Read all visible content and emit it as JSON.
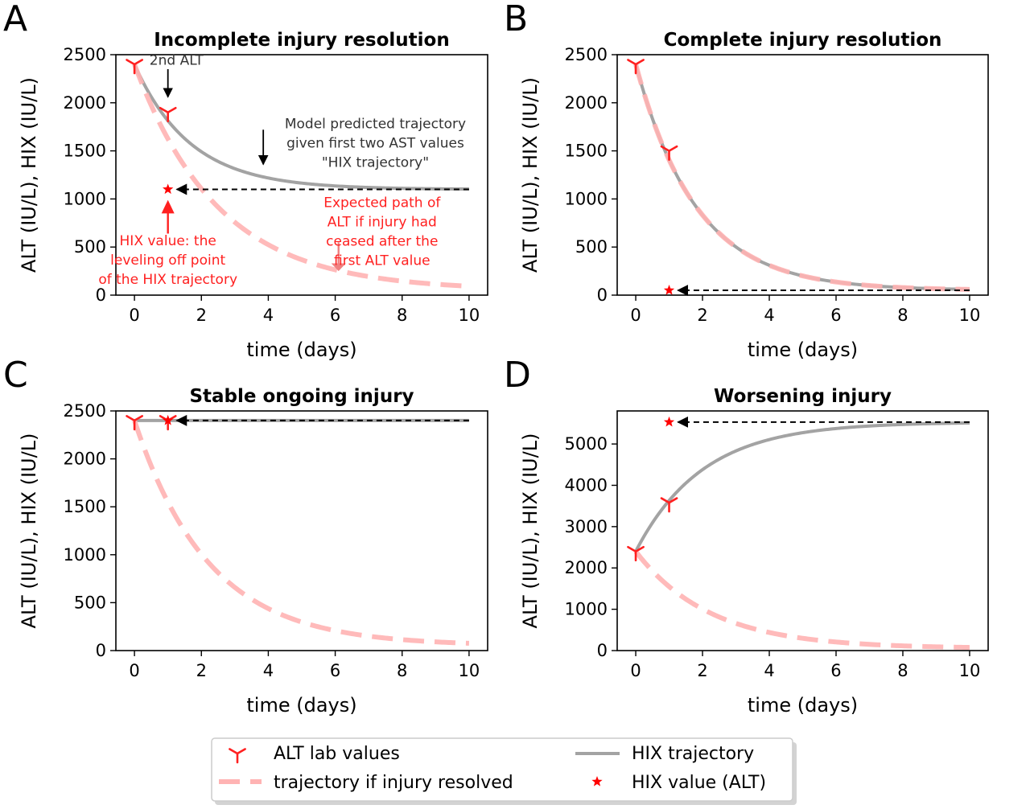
{
  "chart_data": [
    {
      "panel": "A",
      "type": "line",
      "title": "Incomplete injury resolution",
      "xlabel": "time (days)",
      "ylabel": "ALT (IU/L), HIX (IU/L)",
      "xlim": [
        0,
        10
      ],
      "ylim": [
        0,
        2500
      ],
      "xticks": [
        0,
        2,
        4,
        6,
        8,
        10
      ],
      "yticks": [
        0,
        500,
        1000,
        1500,
        2000,
        2500
      ],
      "hix_trajectory": {
        "start": 2400,
        "plateau": 1100,
        "rate": 0.6
      },
      "resolved_trajectory": {
        "start": 2400,
        "plateau": 50,
        "rate": 0.4
      },
      "alt_lab_values": [
        {
          "x": 0,
          "y": 2400
        },
        {
          "x": 1,
          "y": 1900
        }
      ],
      "hix_value": {
        "x": 1,
        "y": 1100
      },
      "annotations": [
        {
          "lines": [
            "2nd ALT"
          ],
          "color": "#333333"
        },
        {
          "lines": [
            "Model predicted trajectory",
            "given first two AST values",
            "\"HIX trajectory\""
          ],
          "color": "#333333"
        },
        {
          "lines": [
            "Expected path of",
            "ALT if injury had",
            "ceased after the",
            "first ALT value"
          ],
          "color": "#ff2020"
        },
        {
          "lines": [
            "HIX value: the",
            "leveling off point",
            "of the HIX trajectory"
          ],
          "color": "#ff2020"
        }
      ]
    },
    {
      "panel": "B",
      "type": "line",
      "title": "Complete injury resolution",
      "xlabel": "time (days)",
      "ylabel": "ALT (IU/L), HIX (IU/L)",
      "xlim": [
        0,
        10
      ],
      "ylim": [
        0,
        2500
      ],
      "xticks": [
        0,
        2,
        4,
        6,
        8,
        10
      ],
      "yticks": [
        0,
        500,
        1000,
        1500,
        2000,
        2500
      ],
      "hix_trajectory": {
        "start": 2400,
        "plateau": 50,
        "rate": 0.55
      },
      "resolved_trajectory": {
        "start": 2400,
        "plateau": 50,
        "rate": 0.55
      },
      "alt_lab_values": [
        {
          "x": 0,
          "y": 2400
        },
        {
          "x": 1,
          "y": 1500
        }
      ],
      "hix_value": {
        "x": 1,
        "y": 50
      },
      "annotations": []
    },
    {
      "panel": "C",
      "type": "line",
      "title": "Stable ongoing injury",
      "xlabel": "time (days)",
      "ylabel": "ALT (IU/L), HIX (IU/L)",
      "xlim": [
        0,
        10
      ],
      "ylim": [
        0,
        2500
      ],
      "xticks": [
        0,
        2,
        4,
        6,
        8,
        10
      ],
      "yticks": [
        0,
        500,
        1000,
        1500,
        2000,
        2500
      ],
      "hix_trajectory": {
        "start": 2400,
        "plateau": 2400,
        "rate": 0.5
      },
      "resolved_trajectory": {
        "start": 2400,
        "plateau": 50,
        "rate": 0.45
      },
      "alt_lab_values": [
        {
          "x": 0,
          "y": 2400
        },
        {
          "x": 1,
          "y": 2400
        }
      ],
      "hix_value": {
        "x": 1,
        "y": 2400
      },
      "annotations": []
    },
    {
      "panel": "D",
      "type": "line",
      "title": "Worsening injury",
      "xlabel": "time (days)",
      "ylabel": "ALT (IU/L), HIX (IU/L)",
      "xlim": [
        0,
        10
      ],
      "ylim": [
        0,
        5800
      ],
      "xticks": [
        0,
        2,
        4,
        6,
        8,
        10
      ],
      "yticks": [
        0,
        1000,
        2000,
        3000,
        4000,
        5000
      ],
      "hix_trajectory": {
        "start": 2400,
        "plateau": 5530,
        "rate": 0.5
      },
      "resolved_trajectory": {
        "start": 2400,
        "plateau": 50,
        "rate": 0.45
      },
      "alt_lab_values": [
        {
          "x": 0,
          "y": 2400
        },
        {
          "x": 1,
          "y": 3580
        }
      ],
      "hix_value": {
        "x": 1,
        "y": 5530
      },
      "annotations": []
    }
  ],
  "legend": {
    "items": [
      {
        "label": "ALT lab values",
        "marker": "tri_down"
      },
      {
        "label": "HIX trajectory",
        "marker": "line"
      },
      {
        "label": "trajectory if injury resolved",
        "marker": "dashed"
      },
      {
        "label": "HIX value (ALT)",
        "marker": "star"
      }
    ]
  },
  "colors": {
    "hix_line": "#a3a3a3",
    "resolved_line": "#ffb3b3",
    "alt_marker": "#ff2020",
    "hix_star": "#ff0000",
    "arrow": "#000000",
    "annotation_red": "#ff2020",
    "annotation_dark": "#333333"
  }
}
